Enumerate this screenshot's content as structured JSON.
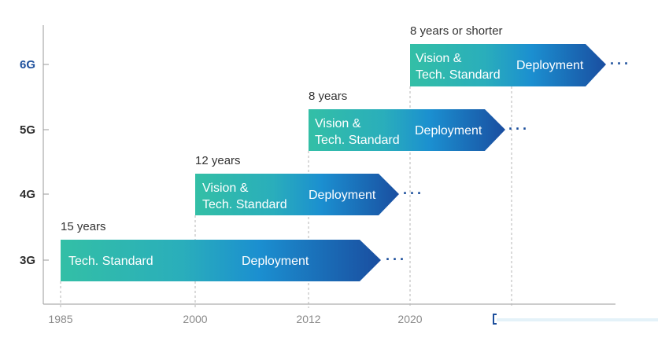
{
  "generations": [
    {
      "name": "3G",
      "highlight": false,
      "duration_label": "15 years",
      "start_year": 1985,
      "phase_labels": [
        "Tech. Standard"
      ],
      "deploy_label": "Deployment"
    },
    {
      "name": "4G",
      "highlight": false,
      "duration_label": "12 years",
      "start_year": 2000,
      "phase_labels": [
        "Vision &",
        "Tech. Standard"
      ],
      "deploy_label": "Deployment"
    },
    {
      "name": "5G",
      "highlight": false,
      "duration_label": "8 years",
      "start_year": 2012,
      "phase_labels": [
        "Vision &",
        "Tech. Standard"
      ],
      "deploy_label": "Deployment"
    },
    {
      "name": "6G",
      "highlight": true,
      "duration_label": "8 years or shorter",
      "start_year": 2020,
      "phase_labels": [
        "Vision &",
        "Tech. Standard"
      ],
      "deploy_label": "Deployment"
    }
  ],
  "x_axis": {
    "ticks": [
      "1985",
      "2000",
      "2012",
      "2020"
    ]
  },
  "continuation_marker": "···",
  "colors": {
    "teal": "#33bfa6",
    "blue_mid": "#1b8fd0",
    "blue_dark": "#1a4ea0",
    "dots": "#1c4f9c",
    "axis": "#9a9a9a",
    "guide": "#b5b5b5"
  }
}
